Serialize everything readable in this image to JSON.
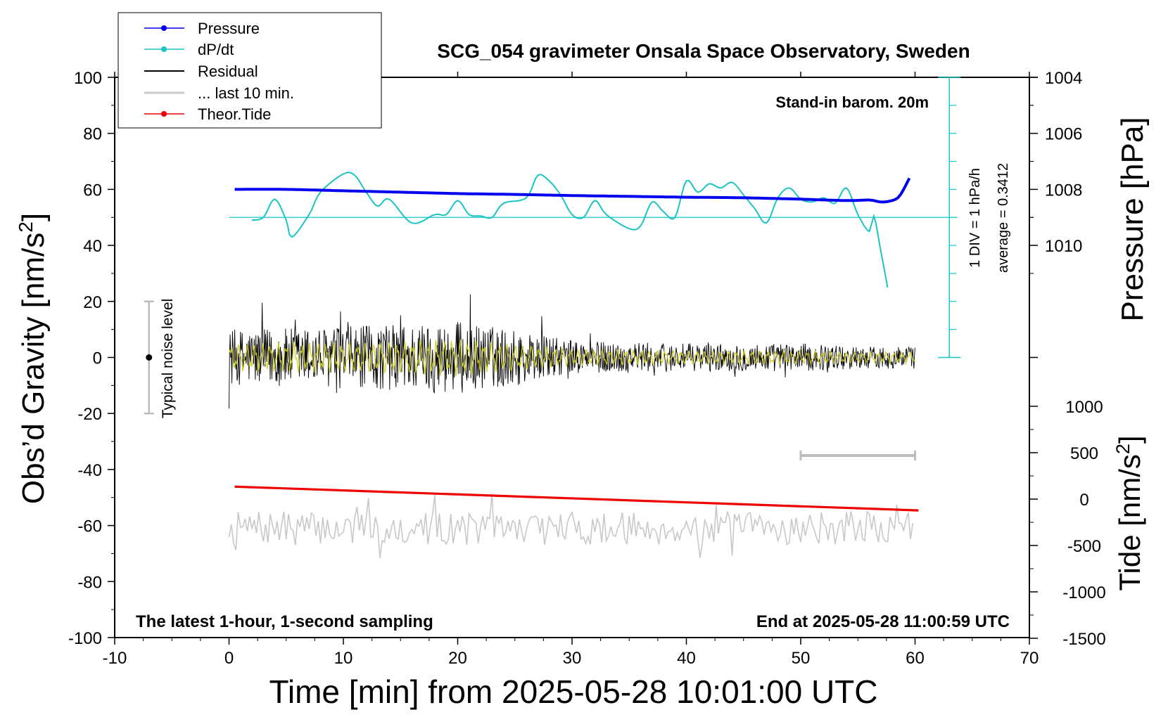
{
  "chart_data": {
    "type": "line",
    "title": "SCG_054 gravimeter Onsala Space Observatory, Sweden",
    "xlabel": "Time [min] from 2025-05-28 10:01:00 UTC",
    "ylabel_left": "Obs’d Gravity [nm/s",
    "ylabel_sup": "2",
    "ylabel_left_close": "]",
    "ylabel_pressure": "Pressure [hPa]",
    "ylabel_tide": "Tide [nm/s",
    "ylabel_tide_close": "]",
    "xlim": [
      -10,
      70
    ],
    "ylim_gravity": [
      -100,
      100
    ],
    "ylim_pressure": [
      1002,
      1012
    ],
    "ylim_tide": [
      -1500,
      1500
    ],
    "x_ticks": [
      "-10",
      "0",
      "10",
      "20",
      "30",
      "40",
      "50",
      "60",
      "70"
    ],
    "gravity_ticks": [
      "100",
      "80",
      "60",
      "40",
      "20",
      "0",
      "-20",
      "-40",
      "-60",
      "-80",
      "-100"
    ],
    "pressure_ticks": [
      "1010",
      "1008",
      "1006",
      "1004"
    ],
    "tide_ticks": [
      "1000",
      "500",
      "0",
      "-500",
      "-1000",
      "-1500"
    ],
    "annotations": {
      "barometer": "Stand-in barom. 20m",
      "div": "1 DIV = 1 hPa/h",
      "average": "average = 0.3412",
      "noise": "Typical noise level",
      "latest": "The latest 1-hour, 1-second sampling",
      "end": "End at 2025-05-28 11:00:59 UTC"
    },
    "legend": {
      "position": "top-left",
      "entries": [
        "Pressure",
        "dP/dt",
        "Residual",
        "... last 10 min.",
        "Theor.Tide"
      ]
    },
    "colors": {
      "pressure": "#0000ee",
      "dpdt": "#1bc4c4",
      "residual": "#000000",
      "last10": "#c8c8c8",
      "tide": "#ee0000",
      "filtered": "#cccc22"
    },
    "series": [
      {
        "name": "Pressure",
        "unit": "hPa",
        "x": [
          0.5,
          5,
          10,
          15,
          20,
          25,
          30,
          35,
          40,
          45,
          50,
          54,
          56,
          57,
          57.8,
          58.5,
          59,
          59.5
        ],
        "values": [
          1008.0,
          1008.0,
          1008.05,
          1008.1,
          1008.15,
          1008.18,
          1008.22,
          1008.25,
          1008.28,
          1008.3,
          1008.35,
          1008.4,
          1008.38,
          1008.45,
          1008.42,
          1008.3,
          1008.0,
          1007.6
        ]
      },
      {
        "name": "dP/dt",
        "unit": "hPa/h",
        "x": [
          2,
          3,
          4,
          5,
          5.5,
          7,
          8,
          10,
          11,
          12,
          13,
          14,
          16,
          18,
          19,
          20,
          21,
          22,
          23,
          24,
          26,
          27,
          28,
          29,
          30,
          31,
          32,
          33,
          35,
          36,
          37,
          38,
          39,
          40,
          41,
          42,
          43,
          44,
          45,
          46,
          47,
          48,
          49,
          50,
          51,
          52,
          53,
          54,
          55,
          56,
          56.4,
          57,
          57.6
        ],
        "values": [
          -0.1,
          0.0,
          0.65,
          -0.1,
          -0.7,
          0.1,
          0.9,
          1.55,
          1.5,
          0.9,
          0.4,
          0.65,
          -0.2,
          0.1,
          0.1,
          0.6,
          0.1,
          0.05,
          0.0,
          0.5,
          0.7,
          1.5,
          1.3,
          0.8,
          0.1,
          0.0,
          0.6,
          0.1,
          -0.4,
          -0.3,
          0.55,
          0.2,
          0.0,
          1.3,
          0.9,
          1.2,
          1.05,
          1.25,
          0.8,
          0.3,
          -0.2,
          0.7,
          1.05,
          0.65,
          0.55,
          0.7,
          0.5,
          1.05,
          0.1,
          -0.5,
          0.05,
          -1.2,
          -2.5
        ]
      },
      {
        "name": "Residual",
        "unit": "nm/s2",
        "x_range": [
          0,
          60
        ],
        "amplitude_profile": {
          "x": [
            0,
            10,
            20,
            25,
            30,
            40,
            50,
            55,
            60
          ],
          "values": [
            10,
            11,
            13,
            10,
            6,
            5,
            5,
            4,
            4
          ]
        }
      },
      {
        "name": "Filtered",
        "unit": "nm/s2",
        "x_range": [
          0,
          60
        ]
      },
      {
        "name": "Theor.Tide",
        "unit": "nm/s2",
        "x": [
          0.5,
          60.3
        ],
        "values": [
          134,
          -122
        ]
      },
      {
        "name": "... last 10 min.",
        "unit": "nm/s2",
        "x_range": [
          0,
          60
        ],
        "center": -61,
        "amplitude": 6
      }
    ],
    "scalebar": {
      "x": [
        50,
        60
      ]
    },
    "noise_bar": {
      "x": -7,
      "y": [
        -20,
        20
      ],
      "center": 0
    }
  }
}
